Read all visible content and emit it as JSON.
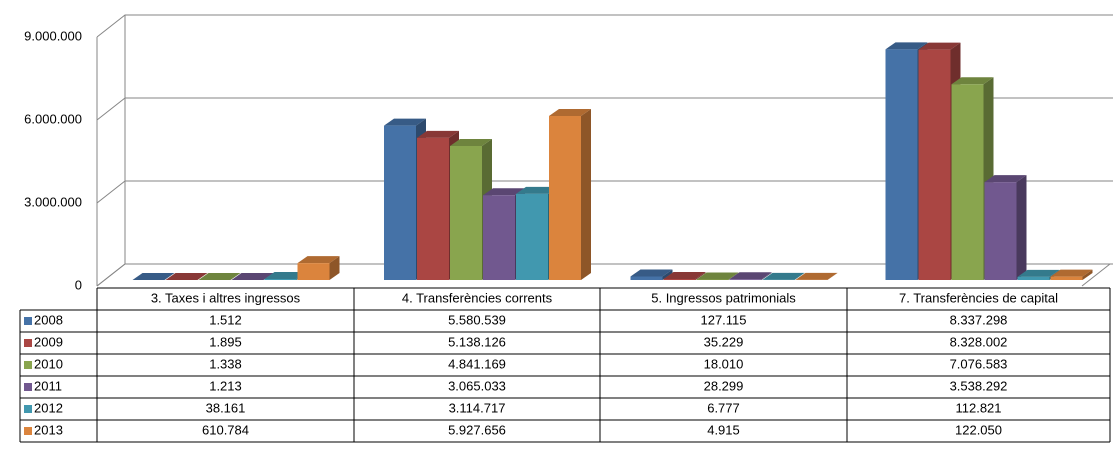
{
  "chart_data": {
    "type": "bar3d",
    "categories": [
      "3. Taxes i altres ingressos",
      "4. Transferències corrents",
      "5. Ingressos patrimonials",
      "7. Transferències de capital"
    ],
    "series": [
      {
        "name": "2008",
        "color": "#4572a7",
        "values": [
          1512,
          5580539,
          127115,
          8337298
        ],
        "value_labels": [
          "1.512",
          "5.580.539",
          "127.115",
          "8.337.298"
        ]
      },
      {
        "name": "2009",
        "color": "#aa4643",
        "values": [
          1895,
          5138126,
          35229,
          8328002
        ],
        "value_labels": [
          "1.895",
          "5.138.126",
          "35.229",
          "8.328.002"
        ]
      },
      {
        "name": "2010",
        "color": "#89a54e",
        "values": [
          1338,
          4841169,
          18010,
          7076583
        ],
        "value_labels": [
          "1.338",
          "4.841.169",
          "18.010",
          "7.076.583"
        ]
      },
      {
        "name": "2011",
        "color": "#71588f",
        "values": [
          1213,
          3065033,
          28299,
          3538292
        ],
        "value_labels": [
          "1.213",
          "3.065.033",
          "28.299",
          "3.538.292"
        ]
      },
      {
        "name": "2012",
        "color": "#4198af",
        "values": [
          38161,
          3114717,
          6777,
          112821
        ],
        "value_labels": [
          "38.161",
          "3.114.717",
          "6.777",
          "112.821"
        ]
      },
      {
        "name": "2013",
        "color": "#db843d",
        "values": [
          610784,
          5927656,
          4915,
          122050
        ],
        "value_labels": [
          "610.784",
          "5.927.656",
          "4.915",
          "122.050"
        ]
      }
    ],
    "ylim": [
      0,
      9000000
    ],
    "yticks": [
      0,
      {
        "value": 3000000,
        "label": "3.000.000"
      },
      {
        "value": 6000000,
        "label": "6.000.000"
      },
      {
        "value": 9000000,
        "label": "9.000.000"
      }
    ],
    "grid": true
  }
}
